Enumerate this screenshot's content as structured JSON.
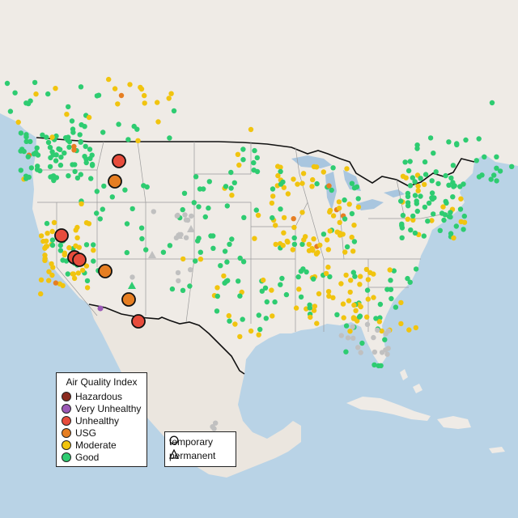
{
  "map": {
    "colors": {
      "ocean": "#b9d3e6",
      "land": "#efebe6",
      "mexico": "#ebe6df",
      "lakes": "#a9c6df",
      "border": "#111111",
      "states": "#9a9a9a"
    }
  },
  "legend": {
    "title": "Air Quality Index",
    "items": [
      {
        "label": "Hazardous",
        "color": "#8b2a1f"
      },
      {
        "label": "Very Unhealthy",
        "color": "#9b59b6"
      },
      {
        "label": "Unhealthy",
        "color": "#e74c3c"
      },
      {
        "label": "USG",
        "color": "#e67e22"
      },
      {
        "label": "Moderate",
        "color": "#f1c40f"
      },
      {
        "label": "Good",
        "color": "#2ecc71"
      }
    ]
  },
  "monitor_types": {
    "items": [
      {
        "label": "temporary",
        "icon": "circle-outline-icon"
      },
      {
        "label": "permanent",
        "icon": "triangle-outline-icon"
      }
    ]
  },
  "colors": {
    "good": "#2ecc71",
    "moderate": "#f1c40f",
    "usg": "#e67e22",
    "unhealthy": "#e74c3c",
    "very_unhealthy": "#9b59b6",
    "no_data": "#c0c0c0"
  }
}
